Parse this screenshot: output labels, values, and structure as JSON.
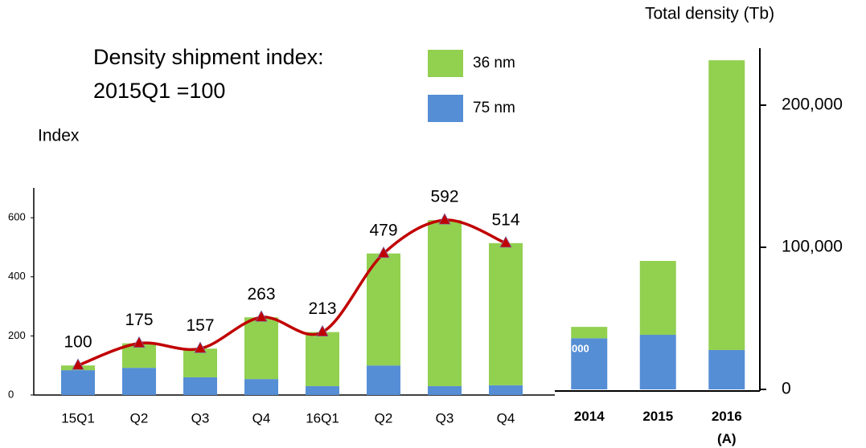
{
  "chart_data": [
    {
      "type": "bar",
      "stacked": true,
      "annotation": [
        "Density shipment index:",
        "2015Q1 =100"
      ],
      "y_label": "Index",
      "categories": [
        "15Q1",
        "Q2",
        "Q3",
        "Q4",
        "16Q1",
        "Q2",
        "Q3",
        "Q4"
      ],
      "series": [
        {
          "name": "75 nm",
          "color": "#558ed5",
          "values": [
            84,
            92,
            60,
            54,
            30,
            100,
            30,
            33
          ]
        },
        {
          "name": "36 nm",
          "color": "#92d050",
          "values": [
            16,
            83,
            97,
            209,
            183,
            379,
            562,
            481
          ]
        }
      ],
      "total_line": {
        "type": "line",
        "color": "#c00000",
        "values": [
          100,
          175,
          157,
          263,
          213,
          479,
          592,
          514
        ]
      },
      "ylim": [
        0,
        700
      ],
      "yticks": [
        0,
        200,
        400,
        600
      ],
      "legend": true
    },
    {
      "type": "bar",
      "stacked": true,
      "y_label": "Total density (Tb)",
      "inner_label": "000",
      "categories": [
        "2014",
        "2015",
        "2016\n(A)"
      ],
      "series": [
        {
          "name": "75 nm",
          "color": "#558ed5",
          "values": [
            36000,
            38400,
            27700
          ]
        },
        {
          "name": "36 nm",
          "color": "#92d050",
          "values": [
            8000,
            52000,
            203900
          ]
        }
      ],
      "ylim": [
        0,
        240000
      ],
      "yticks": [
        0,
        {
          "value": 100000,
          "label": "100,000"
        },
        {
          "value": 200000,
          "label": "200,000"
        }
      ],
      "legend": false
    }
  ]
}
